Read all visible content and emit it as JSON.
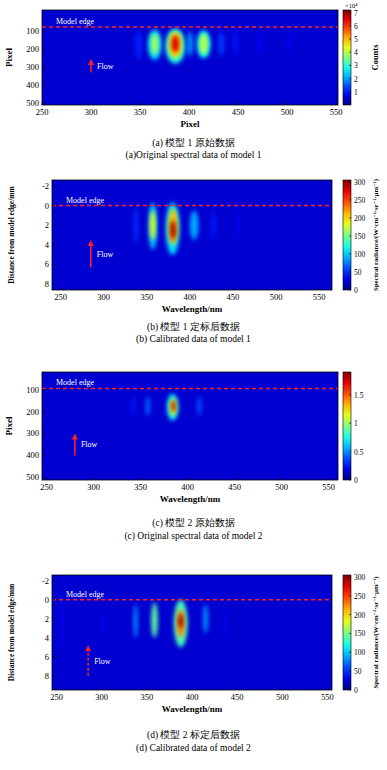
{
  "chart_data": [
    {
      "type": "heatmap",
      "title": "(a) 模型 1 原始数据",
      "subtitle": "(a)Original spectral data of model 1",
      "x_label": "Pixel",
      "y_label": "Pixel",
      "xlim": [
        250,
        552
      ],
      "xticks": [
        250,
        300,
        350,
        400,
        450,
        500,
        550
      ],
      "ylim": [
        512,
        -20
      ],
      "yticks": [
        100,
        200,
        300,
        400,
        500
      ],
      "colorbar": {
        "label": "Counts",
        "scale_label": "×10⁴",
        "range": [
          0,
          72000
        ],
        "ticks": [
          {
            "value": 10000,
            "label": "1"
          },
          {
            "value": 20000,
            "label": "2"
          },
          {
            "value": 30000,
            "label": "3"
          },
          {
            "value": 40000,
            "label": "4"
          },
          {
            "value": 50000,
            "label": "5"
          },
          {
            "value": 60000,
            "label": "6"
          },
          {
            "value": 70000,
            "label": "7"
          }
        ]
      },
      "cells": [
        {
          "x": [
            345,
            352
          ],
          "y": [
            100,
            260
          ],
          "value": 6000
        },
        {
          "x": [
            358,
            372
          ],
          "y": [
            90,
            260
          ],
          "value": 20000
        },
        {
          "x": [
            361,
            369
          ],
          "y": [
            110,
            230
          ],
          "value": 35000
        },
        {
          "x": [
            376,
            396
          ],
          "y": [
            85,
            280
          ],
          "value": 25000
        },
        {
          "x": [
            379,
            393
          ],
          "y": [
            100,
            250
          ],
          "value": 45000
        },
        {
          "x": [
            382,
            390
          ],
          "y": [
            120,
            220
          ],
          "value": 65000
        },
        {
          "x": [
            398,
            404
          ],
          "y": [
            100,
            240
          ],
          "value": 15000
        },
        {
          "x": [
            408,
            422
          ],
          "y": [
            95,
            250
          ],
          "value": 22000
        },
        {
          "x": [
            411,
            419
          ],
          "y": [
            110,
            230
          ],
          "value": 38000
        },
        {
          "x": [
            430,
            436
          ],
          "y": [
            100,
            240
          ],
          "value": 8000
        },
        {
          "x": [
            445,
            450
          ],
          "y": [
            100,
            230
          ],
          "value": 5000
        },
        {
          "x": [
            470,
            474
          ],
          "y": [
            100,
            230
          ],
          "value": 4000
        },
        {
          "x": [
            500,
            504
          ],
          "y": [
            100,
            230
          ],
          "value": 3000
        }
      ],
      "annotations": [
        {
          "text": "Model edge",
          "y": 75,
          "color": "#ff2020",
          "line_style": "dashed"
        },
        {
          "text": "Flow",
          "x": 300,
          "y": [
            330,
            255
          ],
          "color": "#ff2020",
          "line_style": "solid"
        }
      ]
    },
    {
      "type": "heatmap",
      "title": "(b) 模型 1 定标后数据",
      "subtitle": "(b) Calibrated data of model 1",
      "x_label": "Wavelength/nm",
      "y_label": "Distance from model edge/mm",
      "xlim": [
        240,
        565
      ],
      "xticks": [
        250,
        300,
        350,
        400,
        450,
        500,
        550
      ],
      "ylim": [
        8.6,
        -2.6
      ],
      "yticks": [
        -2,
        0,
        2,
        4,
        6,
        8
      ],
      "colorbar": {
        "label": "Spectral radiance/(W·cm⁻²·sr⁻¹·μm⁻¹)",
        "range": [
          0,
          305
        ],
        "ticks": [
          0,
          50,
          100,
          150,
          200,
          250,
          300
        ]
      },
      "cells": [
        {
          "x": [
            335,
            340
          ],
          "y": [
            0,
            4
          ],
          "value": 30
        },
        {
          "x": [
            352,
            362
          ],
          "y": [
            -0.3,
            4.5
          ],
          "value": 80
        },
        {
          "x": [
            354,
            360
          ],
          "y": [
            0.5,
            3.5
          ],
          "value": 180
        },
        {
          "x": [
            372,
            388
          ],
          "y": [
            -0.3,
            5
          ],
          "value": 90
        },
        {
          "x": [
            375,
            386
          ],
          "y": [
            0.3,
            4
          ],
          "value": 200
        },
        {
          "x": [
            377,
            384
          ],
          "y": [
            1.5,
            3.5
          ],
          "value": 290
        },
        {
          "x": [
            400,
            410
          ],
          "y": [
            0.5,
            3.5
          ],
          "value": 70
        },
        {
          "x": [
            425,
            430
          ],
          "y": [
            0.5,
            3.5
          ],
          "value": 25
        },
        {
          "x": [
            455,
            458
          ],
          "y": [
            0.5,
            3.5
          ],
          "value": 15
        }
      ],
      "annotations": [
        {
          "text": "Model edge",
          "y": 0,
          "color": "#ff2020",
          "line_style": "dashed"
        },
        {
          "text": "Flow",
          "x": 285,
          "y": [
            6.3,
            3.5
          ],
          "color": "#ff2020",
          "line_style": "solid"
        }
      ]
    },
    {
      "type": "heatmap",
      "title": "(c) 模型 2 原始数据",
      "subtitle": "(c) Original spectral data of model 2",
      "x_label": "Wavelength/nm",
      "y_label": "Pixel",
      "xlim": [
        245,
        560
      ],
      "xticks": [
        250,
        300,
        350,
        400,
        450,
        500,
        550
      ],
      "ylim": [
        512,
        20
      ],
      "yticks": [
        100,
        200,
        300,
        400,
        500
      ],
      "colorbar": {
        "range": [
          0,
          1.9
        ],
        "ticks": [
          0,
          0.5,
          1,
          1.5
        ]
      },
      "cells": [
        {
          "x": [
            340,
            344
          ],
          "y": [
            130,
            220
          ],
          "value": 0.15
        },
        {
          "x": [
            355,
            360
          ],
          "y": [
            130,
            220
          ],
          "value": 0.3
        },
        {
          "x": [
            378,
            390
          ],
          "y": [
            120,
            240
          ],
          "value": 0.6
        },
        {
          "x": [
            381,
            388
          ],
          "y": [
            140,
            220
          ],
          "value": 1.2
        },
        {
          "x": [
            383,
            387
          ],
          "y": [
            150,
            200
          ],
          "value": 1.8
        },
        {
          "x": [
            410,
            415
          ],
          "y": [
            130,
            220
          ],
          "value": 0.25
        }
      ],
      "annotations": [
        {
          "text": "Model edge",
          "y": 95,
          "color": "#ff2020",
          "line_style": "dashed"
        },
        {
          "text": "Flow",
          "x": 280,
          "y": [
            400,
            300
          ],
          "color": "#ff2020",
          "line_style": "solid"
        }
      ]
    },
    {
      "type": "heatmap",
      "title": "(d) 模型 2 标定后数据",
      "subtitle": "(d) Calibrated data of model 2",
      "x_label": "Wavelength/nm",
      "y_label": "Distance from model edge/mm",
      "xlim": [
        245,
        555
      ],
      "xticks": [
        250,
        300,
        350,
        400,
        450,
        500,
        550
      ],
      "ylim": [
        9.5,
        -2.6
      ],
      "yticks": [
        -2,
        0,
        2,
        4,
        6,
        8
      ],
      "colorbar": {
        "label": "Spectral radiance/(W·cm⁻²·sr⁻¹·μm⁻¹)",
        "range": [
          0,
          305
        ],
        "ticks": [
          0,
          50,
          100,
          150,
          200,
          250,
          300
        ]
      },
      "cells": [
        {
          "x": [
            255,
            258
          ],
          "y": [
            0,
            5
          ],
          "value": 20
        },
        {
          "x": [
            300,
            303
          ],
          "y": [
            1,
            4
          ],
          "value": 15
        },
        {
          "x": [
            335,
            340
          ],
          "y": [
            0.5,
            4
          ],
          "value": 60
        },
        {
          "x": [
            355,
            362
          ],
          "y": [
            0.3,
            4
          ],
          "value": 130
        },
        {
          "x": [
            380,
            395
          ],
          "y": [
            0,
            5
          ],
          "value": 120
        },
        {
          "x": [
            383,
            392
          ],
          "y": [
            1,
            4
          ],
          "value": 220
        },
        {
          "x": [
            385,
            390
          ],
          "y": [
            1.5,
            3
          ],
          "value": 300
        },
        {
          "x": [
            412,
            418
          ],
          "y": [
            0.5,
            3.5
          ],
          "value": 60
        },
        {
          "x": [
            435,
            438
          ],
          "y": [
            1,
            4
          ],
          "value": 20
        }
      ],
      "annotations": [
        {
          "text": "Model edge",
          "y": 0,
          "color": "#ff2020",
          "line_style": "dashed"
        },
        {
          "text": "Flow",
          "x": 285,
          "y": [
            8,
            4.8
          ],
          "color": "#ff2020",
          "line_style": "dashed"
        }
      ]
    }
  ]
}
